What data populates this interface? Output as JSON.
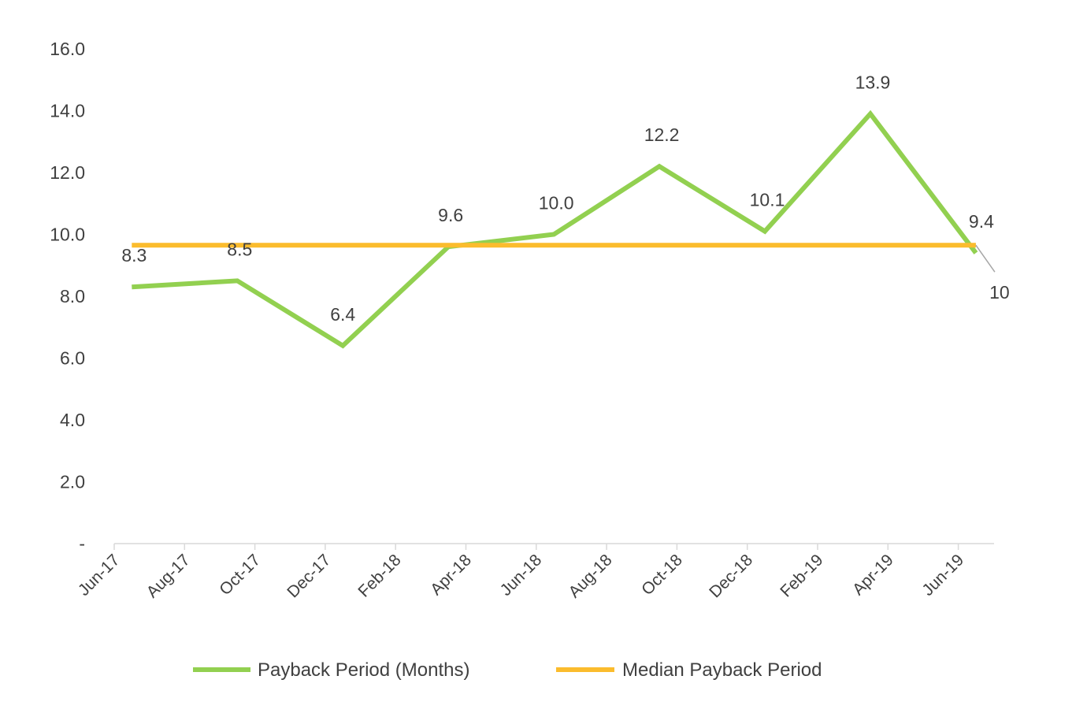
{
  "chart_data": {
    "type": "line",
    "title": "",
    "xlabel": "",
    "ylabel": "",
    "ylim": [
      0,
      16
    ],
    "yticks": [
      "-",
      "2.0",
      "4.0",
      "6.0",
      "8.0",
      "10.0",
      "12.0",
      "14.0",
      "16.0"
    ],
    "xtick_labels": [
      "Jun-17",
      "Aug-17",
      "Oct-17",
      "Dec-17",
      "Feb-18",
      "Apr-18",
      "Jun-18",
      "Aug-18",
      "Oct-18",
      "Dec-18",
      "Feb-19",
      "Apr-19",
      "Jun-19"
    ],
    "x_month_offsets": [
      0.5,
      3.5,
      6.5,
      9.5,
      12.5,
      15.5,
      18.5,
      21.5,
      24.5
    ],
    "series": [
      {
        "name": "Payback Period (Months)",
        "color": "#92d050",
        "values": [
          8.3,
          8.5,
          6.4,
          9.6,
          10.0,
          12.2,
          10.1,
          13.9,
          9.4
        ],
        "labels": [
          "8.3",
          "8.5",
          "6.4",
          "9.6",
          "10.0",
          "12.2",
          "10.1",
          "13.9",
          "9.4"
        ]
      },
      {
        "name": "Median Payback Period",
        "color": "#fbbc2d",
        "values": [
          9.65,
          9.65,
          9.65,
          9.65,
          9.65,
          9.65,
          9.65,
          9.65,
          9.65
        ],
        "end_label": "10"
      }
    ],
    "grid": false,
    "legend": "bottom"
  }
}
